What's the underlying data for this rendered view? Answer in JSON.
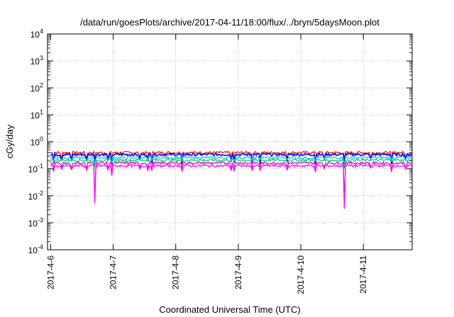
{
  "chart_data": {
    "type": "line",
    "title": "/data/run/goesPlots/archive/2017-04-11/18:00/flux/../bryn/5daysMoon.plot",
    "xlabel": "Coordinated Universal Time (UTC)",
    "ylabel": "cGy/day",
    "yscale": "log",
    "ylim": [
      0.0001,
      10000
    ],
    "xlim_days": [
      -0.05,
      5.78
    ],
    "grid": true,
    "y_ticks": [
      {
        "base": "10",
        "exp": "4"
      },
      {
        "base": "10",
        "exp": "3"
      },
      {
        "base": "10",
        "exp": "2"
      },
      {
        "base": "10",
        "exp": "1"
      },
      {
        "base": "10",
        "exp": "0"
      },
      {
        "base": "10",
        "exp": "-1"
      },
      {
        "base": "10",
        "exp": "-2"
      },
      {
        "base": "10",
        "exp": "-3"
      },
      {
        "base": "10",
        "exp": "-4"
      }
    ],
    "x_ticks": [
      "2017-4-6",
      "2017-4-7",
      "2017-4-8",
      "2017-4-9",
      "2017-4-10",
      "2017-4-11"
    ],
    "series": [
      {
        "color": "#ff0000",
        "base": 0.4
      },
      {
        "color": "#0000ff",
        "base": 0.34
      },
      {
        "color": "#00cccc",
        "base": 0.26
      },
      {
        "color": "#00cc66",
        "base": 0.21
      },
      {
        "color": "#cc00cc",
        "base": 0.165
      },
      {
        "color": "#ff00ff",
        "base": 0.13
      }
    ],
    "dips": [
      {
        "day": 0.71,
        "value": 0.0006
      },
      {
        "day": 0.05,
        "value": 0.07
      },
      {
        "day": 0.17,
        "value": 0.07
      },
      {
        "day": 0.33,
        "value": 0.06
      },
      {
        "day": 0.57,
        "value": 0.05
      },
      {
        "day": 0.92,
        "value": 0.06
      },
      {
        "day": 0.98,
        "value": 0.045
      },
      {
        "day": 1.42,
        "value": 0.07
      },
      {
        "day": 1.55,
        "value": 0.065
      },
      {
        "day": 1.62,
        "value": 0.08
      },
      {
        "day": 2.1,
        "value": 0.08
      },
      {
        "day": 2.88,
        "value": 0.06
      },
      {
        "day": 2.93,
        "value": 0.07
      },
      {
        "day": 3.22,
        "value": 0.08
      },
      {
        "day": 3.35,
        "value": 0.085
      },
      {
        "day": 3.78,
        "value": 0.08
      },
      {
        "day": 4.23,
        "value": 0.07
      },
      {
        "day": 4.37,
        "value": 0.08
      },
      {
        "day": 4.7,
        "value": 0.0006
      },
      {
        "day": 5.12,
        "value": 0.08
      },
      {
        "day": 5.45,
        "value": 0.075
      },
      {
        "day": 5.68,
        "value": 0.065
      }
    ]
  }
}
